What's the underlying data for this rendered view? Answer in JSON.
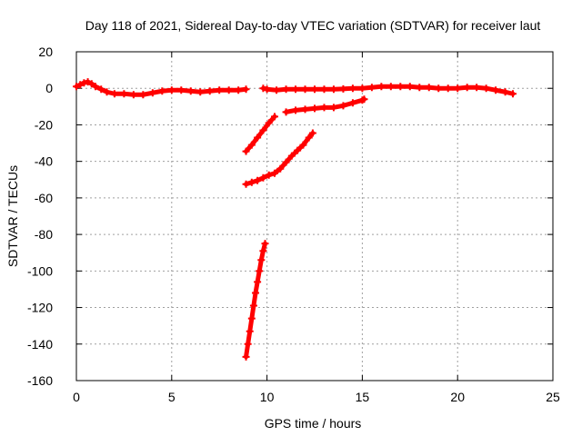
{
  "chart_data": {
    "type": "scatter",
    "title": "Day 118 of 2021, Sidereal Day-to-day VTEC variation (SDTVAR) for receiver laut",
    "xlabel": "GPS time / hours",
    "ylabel": "SDTVAR / TECUs",
    "xlim": [
      0,
      25
    ],
    "ylim": [
      -160,
      20
    ],
    "xticks": [
      0,
      5,
      10,
      15,
      20,
      25
    ],
    "yticks": [
      -160,
      -140,
      -120,
      -100,
      -80,
      -60,
      -40,
      -20,
      0,
      20
    ],
    "grid": true,
    "point_color": "#ff0000",
    "series": [
      {
        "points": [
          [
            0.0,
            1.0
          ],
          [
            0.2,
            2.0
          ],
          [
            0.4,
            3.0
          ],
          [
            0.6,
            3.5
          ],
          [
            0.8,
            2.5
          ],
          [
            1.0,
            1.0
          ],
          [
            1.3,
            -0.5
          ],
          [
            1.6,
            -2.0
          ],
          [
            2.0,
            -3.0
          ],
          [
            2.5,
            -3.0
          ],
          [
            3.0,
            -3.5
          ],
          [
            3.5,
            -3.5
          ],
          [
            4.0,
            -2.5
          ],
          [
            4.5,
            -1.5
          ],
          [
            5.0,
            -1.0
          ],
          [
            5.5,
            -1.0
          ],
          [
            6.0,
            -1.5
          ],
          [
            6.5,
            -2.0
          ],
          [
            7.0,
            -1.5
          ],
          [
            7.5,
            -1.0
          ],
          [
            8.0,
            -1.0
          ],
          [
            8.5,
            -1.0
          ],
          [
            8.9,
            -0.5
          ]
        ]
      },
      {
        "points": [
          [
            9.8,
            0.0
          ],
          [
            10.0,
            -0.5
          ],
          [
            10.5,
            -1.0
          ],
          [
            11.0,
            -0.5
          ],
          [
            11.5,
            -0.5
          ],
          [
            12.0,
            -0.5
          ],
          [
            12.5,
            -0.5
          ],
          [
            13.0,
            -0.5
          ],
          [
            13.5,
            -0.5
          ],
          [
            14.0,
            -0.3
          ],
          [
            14.5,
            0.0
          ],
          [
            15.0,
            0.0
          ],
          [
            15.5,
            0.5
          ],
          [
            16.0,
            1.0
          ],
          [
            16.5,
            1.0
          ],
          [
            17.0,
            1.0
          ],
          [
            17.5,
            1.0
          ],
          [
            18.0,
            0.5
          ],
          [
            18.5,
            0.5
          ],
          [
            19.0,
            0.0
          ],
          [
            19.5,
            0.0
          ],
          [
            20.0,
            0.0
          ],
          [
            20.5,
            0.5
          ],
          [
            21.0,
            0.5
          ],
          [
            21.5,
            0.0
          ],
          [
            22.0,
            -1.0
          ],
          [
            22.5,
            -2.0
          ],
          [
            22.9,
            -3.0
          ]
        ]
      },
      {
        "points": [
          [
            8.9,
            -34.5
          ],
          [
            9.2,
            -31.0
          ],
          [
            9.5,
            -27.0
          ],
          [
            9.8,
            -23.0
          ],
          [
            10.1,
            -19.0
          ],
          [
            10.4,
            -15.5
          ]
        ]
      },
      {
        "points": [
          [
            11.0,
            -13.0
          ],
          [
            11.5,
            -12.0
          ],
          [
            12.0,
            -11.5
          ],
          [
            12.5,
            -11.0
          ],
          [
            13.0,
            -10.5
          ],
          [
            13.5,
            -10.5
          ],
          [
            14.0,
            -9.5
          ],
          [
            14.5,
            -8.0
          ],
          [
            15.0,
            -6.5
          ],
          [
            15.1,
            -6.0
          ]
        ]
      },
      {
        "points": [
          [
            8.9,
            -52.5
          ],
          [
            9.2,
            -51.5
          ],
          [
            9.5,
            -50.5
          ],
          [
            9.8,
            -49.0
          ],
          [
            10.1,
            -47.5
          ],
          [
            10.4,
            -46.5
          ],
          [
            10.7,
            -44.0
          ],
          [
            11.0,
            -40.5
          ],
          [
            11.3,
            -37.0
          ],
          [
            11.6,
            -34.0
          ],
          [
            11.9,
            -31.0
          ],
          [
            12.2,
            -27.0
          ],
          [
            12.4,
            -24.5
          ]
        ]
      },
      {
        "points": [
          [
            8.9,
            -147.0
          ],
          [
            9.0,
            -140.0
          ],
          [
            9.1,
            -133.0
          ],
          [
            9.2,
            -126.0
          ],
          [
            9.3,
            -119.0
          ],
          [
            9.4,
            -112.0
          ],
          [
            9.5,
            -106.0
          ],
          [
            9.6,
            -100.0
          ],
          [
            9.7,
            -94.0
          ],
          [
            9.8,
            -89.0
          ],
          [
            9.9,
            -85.0
          ]
        ]
      }
    ]
  }
}
